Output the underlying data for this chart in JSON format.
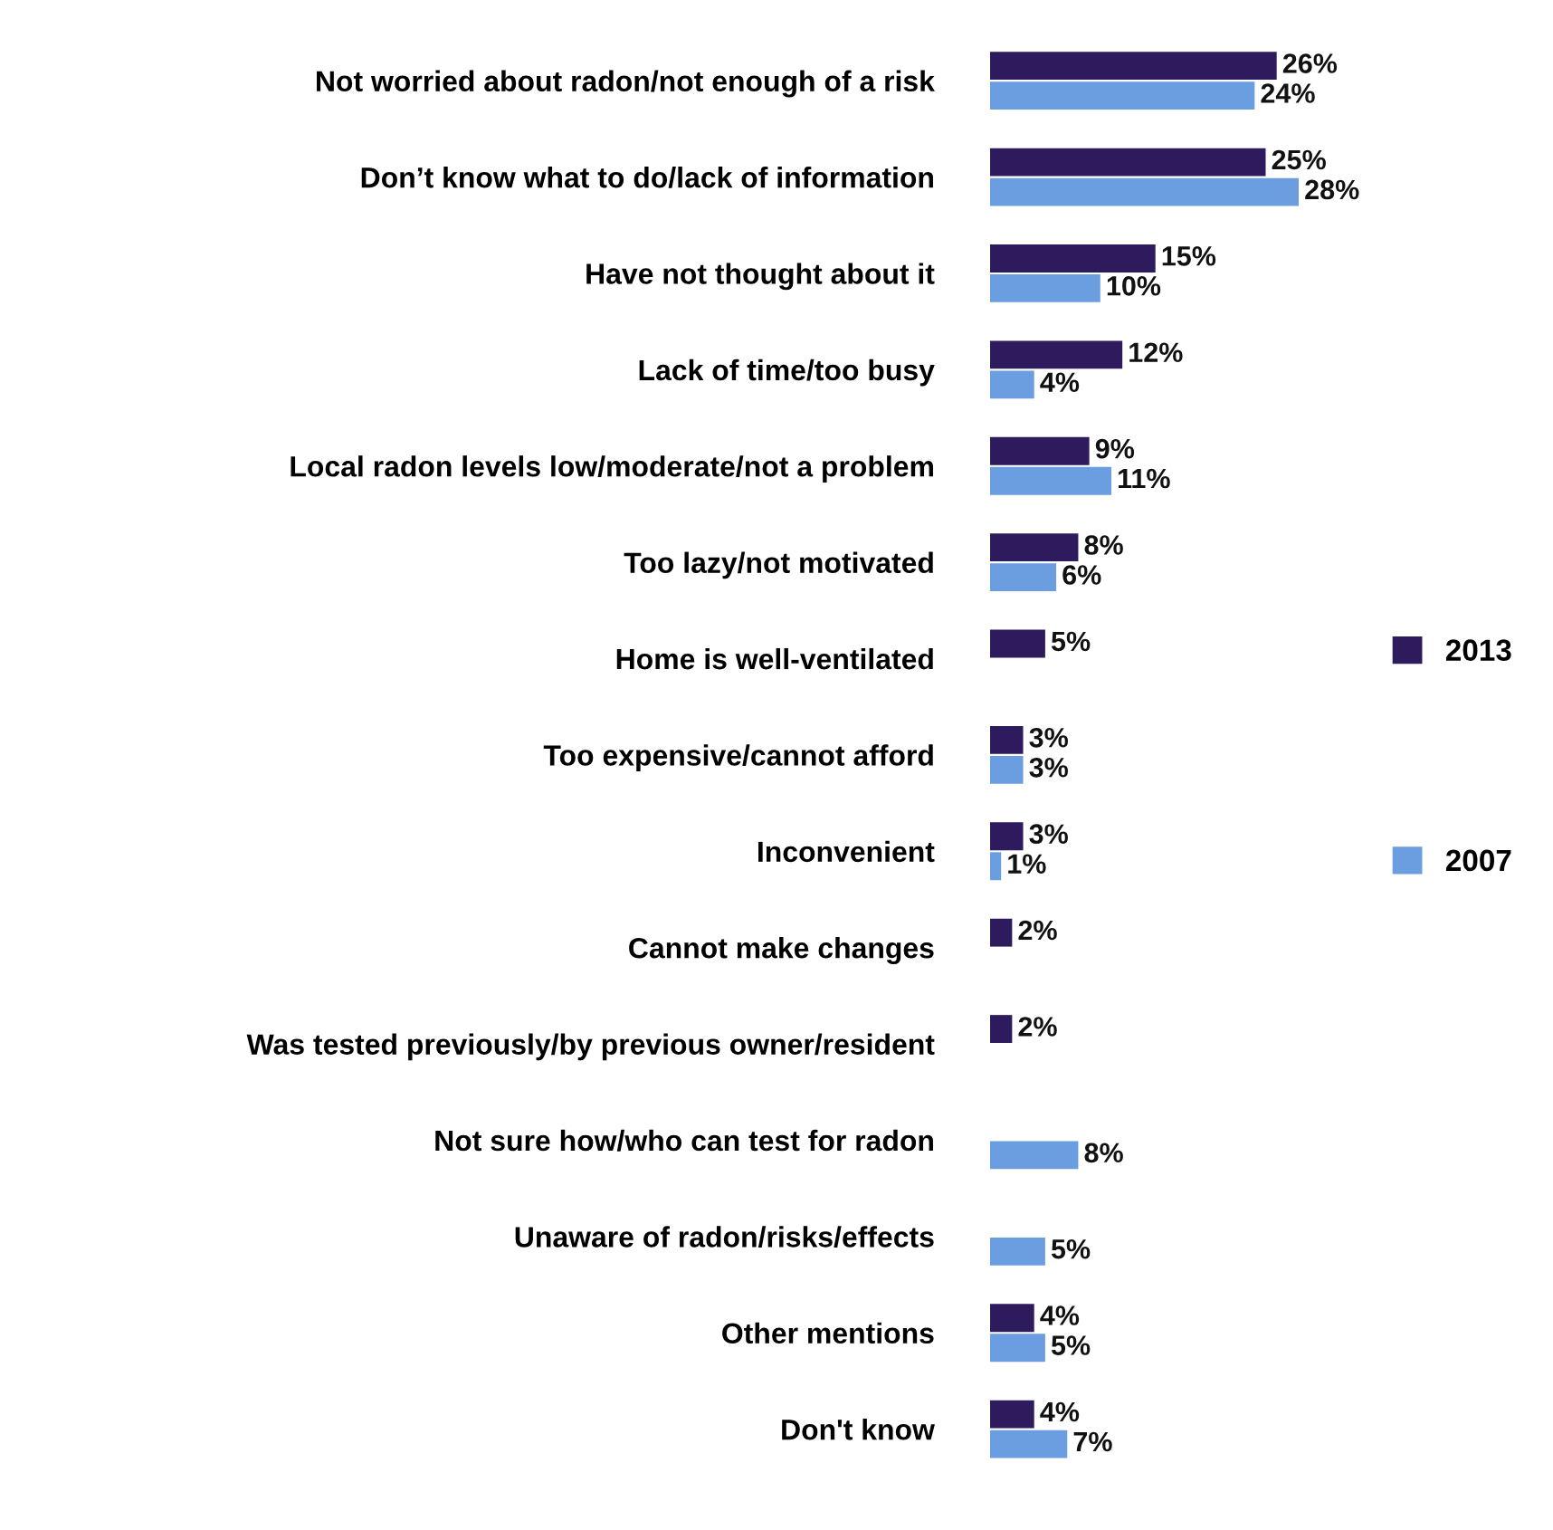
{
  "chart_data": {
    "type": "bar",
    "orientation": "horizontal",
    "legend": "right",
    "categories": [
      "Not worried about radon/not enough of a risk",
      "Don’t know what to do/lack of information",
      "Have not thought about it",
      "Lack of time/too busy",
      "Local radon levels low/moderate/not a problem",
      "Too lazy/not motivated",
      "Home is well-ventilated",
      "Too expensive/cannot afford",
      "Inconvenient",
      "Cannot make changes",
      "Was tested previously/by previous owner/resident",
      "Not sure how/who can test for radon",
      "Unaware of radon/risks/effects",
      "Other mentions",
      "Don't know"
    ],
    "series": [
      {
        "name": "2013",
        "color": "#2d1b5e",
        "values": [
          26,
          25,
          15,
          12,
          9,
          8,
          5,
          3,
          3,
          2,
          2,
          null,
          null,
          4,
          4
        ],
        "value_labels": [
          "26%",
          "25%",
          "15%",
          "12%",
          "9%",
          "8%",
          "5%",
          "3%",
          "3%",
          "2%",
          "2%",
          null,
          null,
          "4%",
          "4%"
        ]
      },
      {
        "name": "2007",
        "color": "#6a9ee0",
        "values": [
          24,
          28,
          10,
          4,
          11,
          6,
          null,
          3,
          1,
          null,
          null,
          8,
          5,
          5,
          7
        ],
        "value_labels": [
          "24%",
          "28%",
          "10%",
          "4%",
          "11%",
          "6%",
          null,
          "3%",
          "1%",
          null,
          null,
          "8%",
          "5%",
          "5%",
          "7%"
        ]
      }
    ]
  }
}
